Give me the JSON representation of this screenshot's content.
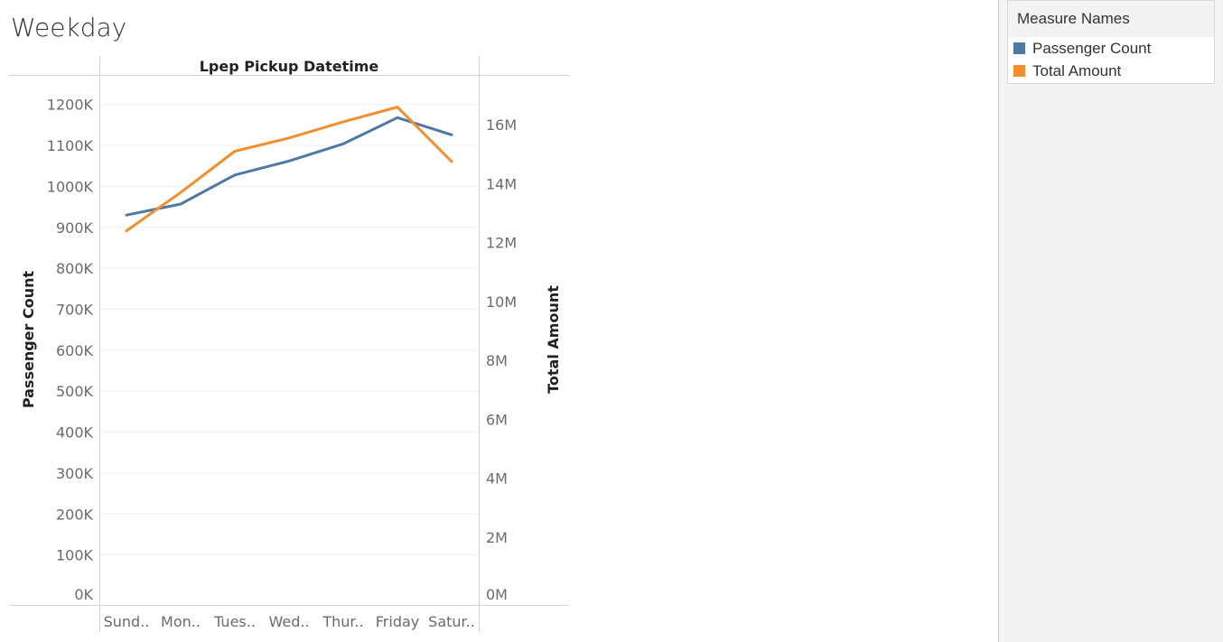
{
  "page": {
    "title": "Weekday"
  },
  "legend": {
    "title": "Measure Names",
    "items": [
      {
        "label": "Passenger Count",
        "color": "#4e79a7"
      },
      {
        "label": "Total Amount",
        "color": "#f28e2b"
      }
    ]
  },
  "chart_data": {
    "type": "line",
    "header": "Lpep Pickup Datetime",
    "categories": [
      "Sund..",
      "Mon..",
      "Tues..",
      "Wed..",
      "Thur..",
      "Friday",
      "Satur.."
    ],
    "series": [
      {
        "name": "Passenger Count",
        "axis": "left",
        "color": "#4e79a7",
        "values": [
          930000,
          957000,
          1028000,
          1062000,
          1104000,
          1168000,
          1126000
        ]
      },
      {
        "name": "Total Amount",
        "axis": "right",
        "color": "#f28e2b",
        "values": [
          12400000,
          13700000,
          15100000,
          15550000,
          16100000,
          16600000,
          14750000
        ]
      }
    ],
    "left_axis": {
      "label": "Passenger Count",
      "range": [
        0,
        1270000
      ],
      "ticks": [
        {
          "value": 0,
          "label": "0K"
        },
        {
          "value": 100000,
          "label": "100K"
        },
        {
          "value": 200000,
          "label": "200K"
        },
        {
          "value": 300000,
          "label": "300K"
        },
        {
          "value": 400000,
          "label": "400K"
        },
        {
          "value": 500000,
          "label": "500K"
        },
        {
          "value": 600000,
          "label": "600K"
        },
        {
          "value": 700000,
          "label": "700K"
        },
        {
          "value": 800000,
          "label": "800K"
        },
        {
          "value": 900000,
          "label": "900K"
        },
        {
          "value": 1000000,
          "label": "1000K"
        },
        {
          "value": 1100000,
          "label": "1100K"
        },
        {
          "value": 1200000,
          "label": "1200K"
        }
      ]
    },
    "right_axis": {
      "label": "Total Amount",
      "range": [
        0,
        17660000
      ],
      "ticks": [
        {
          "value": 0,
          "label": "0M"
        },
        {
          "value": 2000000,
          "label": "2M"
        },
        {
          "value": 4000000,
          "label": "4M"
        },
        {
          "value": 6000000,
          "label": "6M"
        },
        {
          "value": 8000000,
          "label": "8M"
        },
        {
          "value": 10000000,
          "label": "10M"
        },
        {
          "value": 12000000,
          "label": "12M"
        },
        {
          "value": 14000000,
          "label": "14M"
        },
        {
          "value": 16000000,
          "label": "16M"
        }
      ]
    },
    "grid": true,
    "legend_position": "right"
  }
}
